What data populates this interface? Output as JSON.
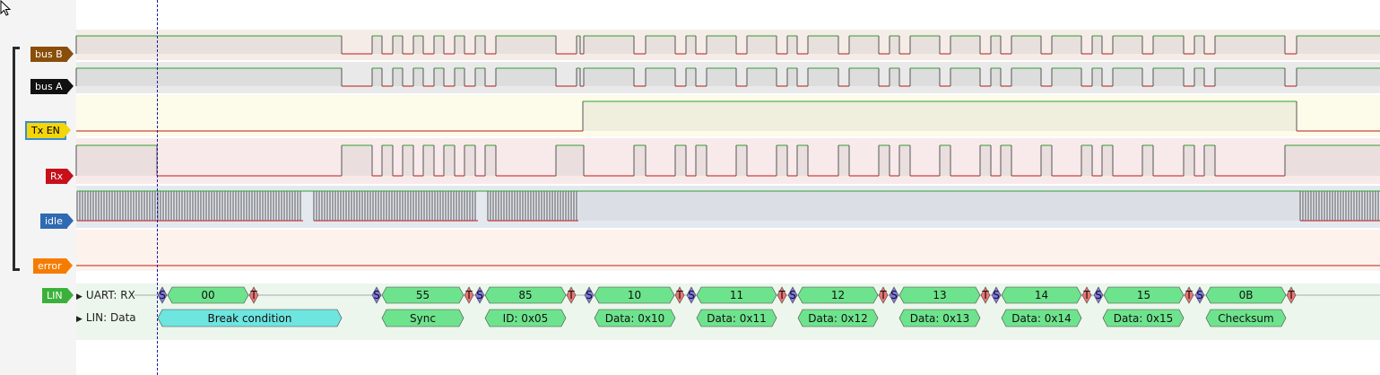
{
  "channels": [
    {
      "label": "bus B",
      "color": "#8a4e0b",
      "fill": "#f5ece8"
    },
    {
      "label": "bus A",
      "color": "#111111",
      "fill": "#e9e9e9"
    },
    {
      "label": "Tx EN",
      "color": "#f3d50a",
      "text_color": "#000000",
      "fill": "#fdfbe9"
    },
    {
      "label": "Rx",
      "color": "#c8101a",
      "fill": "#f8eaea"
    },
    {
      "label": "idle",
      "color": "#2f6ab2",
      "fill": "#e4e8ef"
    },
    {
      "label": "error",
      "color": "#f57c00",
      "fill": "#fdf3ec"
    }
  ],
  "decoder": {
    "label": "LIN",
    "color": "#3bb13b",
    "rows": [
      "UART: RX",
      "LIN: Data"
    ],
    "uart_bytes": [
      "00",
      "55",
      "85",
      "10",
      "11",
      "12",
      "13",
      "14",
      "15",
      "0B"
    ],
    "start_bit_label": "S",
    "stop_bit_label": "T",
    "lin_fields": [
      "Break condition",
      "Sync",
      "ID: 0x05",
      "Data: 0x10",
      "Data: 0x11",
      "Data: 0x12",
      "Data: 0x13",
      "Data: 0x14",
      "Data: 0x15",
      "Checksum"
    ]
  },
  "colors": {
    "high_trace": "#2ea12e",
    "low_trace": "#c01818",
    "uart_box": "#6ee38d",
    "break_box": "#6ee5df",
    "start_bit": "#8077e8",
    "stop_bit": "#ee7373"
  }
}
